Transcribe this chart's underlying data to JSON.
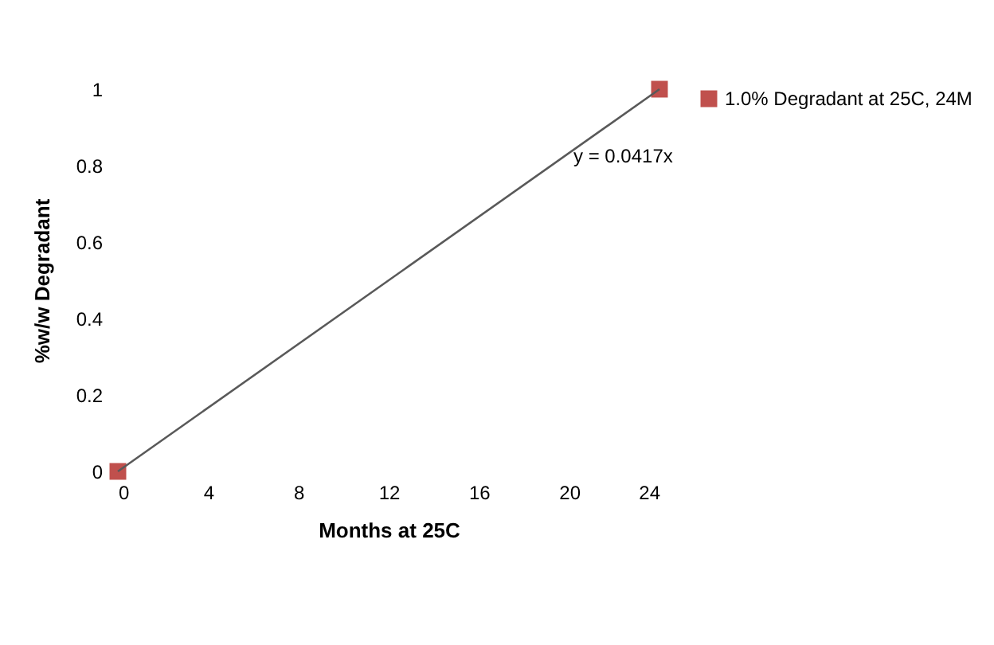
{
  "chart_data": {
    "type": "scatter",
    "xlabel": "Months at 25C",
    "ylabel": "%w/w Degradant",
    "x": [
      0,
      24
    ],
    "series": [
      {
        "name": "1.0% Degradant at 25C, 24M",
        "type": "scatter",
        "color": "#c0504d",
        "values": [
          0,
          1
        ],
        "marker": "square"
      },
      {
        "type": "line",
        "color": "#595959",
        "x": [
          0,
          24
        ],
        "values": [
          0,
          1
        ],
        "marker": "none",
        "line_style": "solid"
      }
    ],
    "annotations": [
      "y = 0.0417x"
    ],
    "xlim": [
      0,
      24
    ],
    "xticks": [
      0,
      4,
      8,
      12,
      16,
      20,
      24
    ],
    "ylim": [
      0,
      1
    ],
    "yticks": [
      0,
      0.2,
      0.4,
      0.6,
      0.8,
      1
    ],
    "grid": false,
    "legend": "right"
  }
}
